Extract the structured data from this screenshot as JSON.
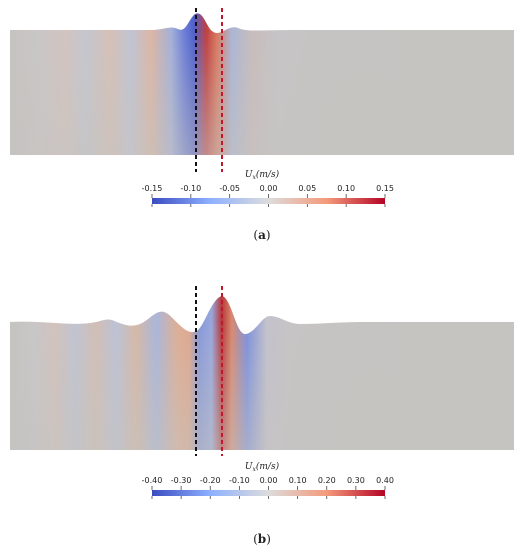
{
  "figure": {
    "panels": [
      {
        "id": "a",
        "caption_open": "(",
        "caption_letter": "a",
        "caption_close": ")",
        "colorbar_title": "U_x(m/s)",
        "colorbar_title_display": "Ux(m/s)",
        "colorbar_ticks": [
          "-0.15",
          "-0.10",
          "-0.05",
          "0.00",
          "0.05",
          "0.10",
          "0.15"
        ],
        "colorbar_range": [
          -0.15,
          0.15
        ],
        "colors": {
          "negative": "#3b4cc0",
          "neutral": "#dddcdc",
          "positive": "#b40426",
          "field_background": "#c6c4c0",
          "line_left": "#111111",
          "line_right": "#c0182a"
        }
      },
      {
        "id": "b",
        "caption_open": "(",
        "caption_letter": "b",
        "caption_close": ")",
        "colorbar_title": "U_x(m/s)",
        "colorbar_title_display": "Ux(m/s)",
        "colorbar_ticks": [
          "-0.40",
          "-0.30",
          "-0.20",
          "-0.10",
          "0.00",
          "0.10",
          "0.20",
          "0.30",
          "0.40"
        ],
        "colorbar_range": [
          -0.4,
          0.4
        ],
        "colors": {
          "negative": "#3b4cc0",
          "neutral": "#dddcdc",
          "positive": "#b40426",
          "field_background": "#c6c4c0",
          "line_left": "#111111",
          "line_right": "#c0182a"
        }
      }
    ]
  }
}
